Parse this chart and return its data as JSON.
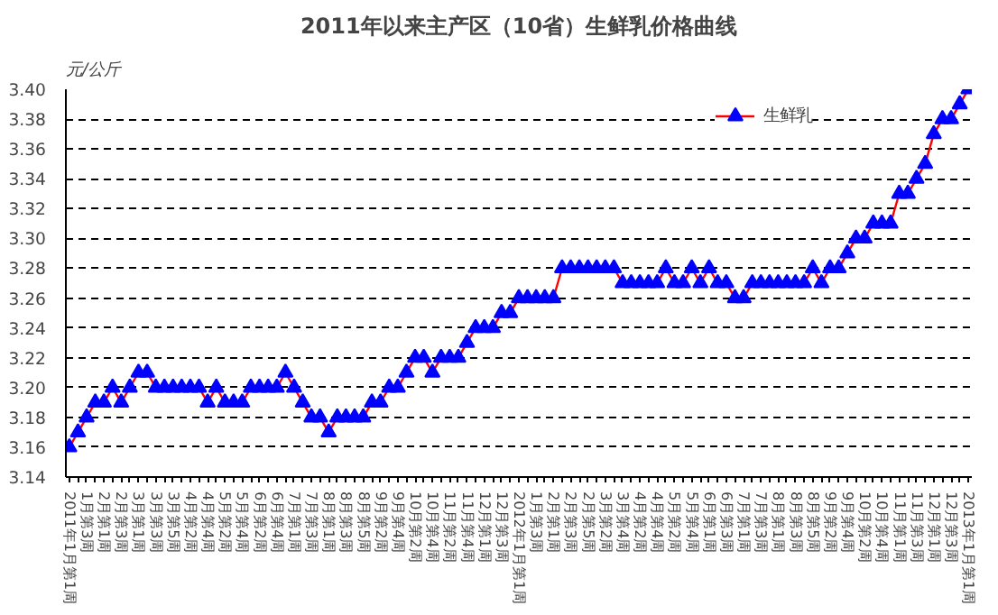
{
  "chart_data": {
    "type": "line",
    "title": "2011年以来主产区（10省）生鲜乳价格曲线",
    "ylabel": "元/公斤",
    "categories": [
      "2011年1月第1周",
      null,
      "1月第3周",
      null,
      "2月第1周",
      null,
      "2月第3周",
      null,
      "3月第1周",
      null,
      "3月第3周",
      null,
      "3月第5周",
      null,
      "4月第2周",
      null,
      "4月第4周",
      null,
      "5月第2周",
      null,
      "5月第4周",
      null,
      "6月第2周",
      null,
      "6月第4周",
      null,
      "7月第1周",
      null,
      "7月第3周",
      null,
      "8月第1周",
      null,
      "8月第3周",
      null,
      "8月第5周",
      null,
      "9月第2周",
      null,
      "9月第4周",
      null,
      "10月第2周",
      null,
      "10月第4周",
      null,
      "11月第2周",
      null,
      "11月第4周",
      null,
      "12月第1周",
      null,
      "12月第3周",
      null,
      "2012年1月第1周",
      null,
      "1月第3周",
      null,
      "2月第1周",
      null,
      "2月第3周",
      null,
      "2月第5周",
      null,
      "3月第2周",
      null,
      "3月第4周",
      null,
      "4月第2周",
      null,
      "4月第4周",
      null,
      "5月第2周",
      null,
      "5月第4周",
      null,
      "6月第1周",
      null,
      "6月第3周",
      null,
      "7月第1周",
      null,
      "7月第3周",
      null,
      "8月第1周",
      null,
      "8月第3周",
      null,
      "8月第5周",
      null,
      "9月第2周",
      null,
      "9月第4周",
      null,
      "10月第2周",
      null,
      "10月第4周",
      null,
      "11月第1周",
      null,
      "11月第3周",
      null,
      "12月第1周",
      null,
      "12月第3周",
      null,
      "2013年1月第1周"
    ],
    "series": [
      {
        "name": "生鲜乳",
        "color": "#0000ff",
        "values": [
          3.16,
          3.17,
          3.18,
          3.19,
          3.19,
          3.2,
          3.19,
          3.2,
          3.21,
          3.21,
          3.2,
          3.2,
          3.2,
          3.2,
          3.2,
          3.2,
          3.19,
          3.2,
          3.19,
          3.19,
          3.19,
          3.2,
          3.2,
          3.2,
          3.2,
          3.21,
          3.2,
          3.19,
          3.18,
          3.18,
          3.17,
          3.18,
          3.18,
          3.18,
          3.18,
          3.19,
          3.19,
          3.2,
          3.2,
          3.21,
          3.22,
          3.22,
          3.21,
          3.22,
          3.22,
          3.22,
          3.23,
          3.24,
          3.24,
          3.24,
          3.25,
          3.25,
          3.26,
          3.26,
          3.26,
          3.26,
          3.26,
          3.28,
          3.28,
          3.28,
          3.28,
          3.28,
          3.28,
          3.28,
          3.27,
          3.27,
          3.27,
          3.27,
          3.27,
          3.28,
          3.27,
          3.27,
          3.28,
          3.27,
          3.28,
          3.27,
          3.27,
          3.26,
          3.26,
          3.27,
          3.27,
          3.27,
          3.27,
          3.27,
          3.27,
          3.27,
          3.28,
          3.27,
          3.28,
          3.28,
          3.29,
          3.3,
          3.3,
          3.31,
          3.31,
          3.31,
          3.33,
          3.33,
          3.34,
          3.35,
          3.37,
          3.38,
          3.38,
          3.39,
          3.4
        ]
      }
    ],
    "ylim": [
      3.14,
      3.4
    ],
    "yticks": [
      3.14,
      3.16,
      3.18,
      {
        "value": 3.2,
        "label": "3.20"
      },
      3.22,
      3.24,
      3.26,
      3.28,
      {
        "value": 3.3,
        "label": "3.30"
      },
      3.32,
      3.34,
      3.36,
      3.38,
      {
        "value": 3.4,
        "label": "3.40"
      }
    ],
    "grid": "y",
    "legend": "top right",
    "marker": "triangle",
    "line_style": "solid"
  }
}
